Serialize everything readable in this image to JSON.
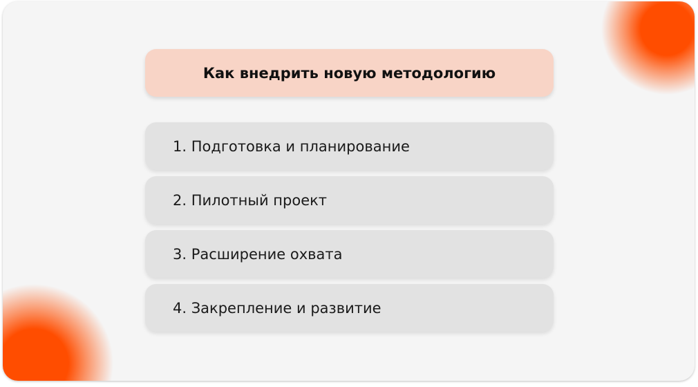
{
  "title": "Как внедрить новую методологию",
  "steps": [
    {
      "label": "1. Подготовка и планирование"
    },
    {
      "label": "2. Пилотный проект"
    },
    {
      "label": "3. Расширение охвата"
    },
    {
      "label": "4. Закрепление и развитие"
    }
  ],
  "colors": {
    "accent": "#ff4d00",
    "title_bg": "#f8d4c6",
    "item_bg": "#e2e2e2",
    "background": "#f5f5f5"
  }
}
